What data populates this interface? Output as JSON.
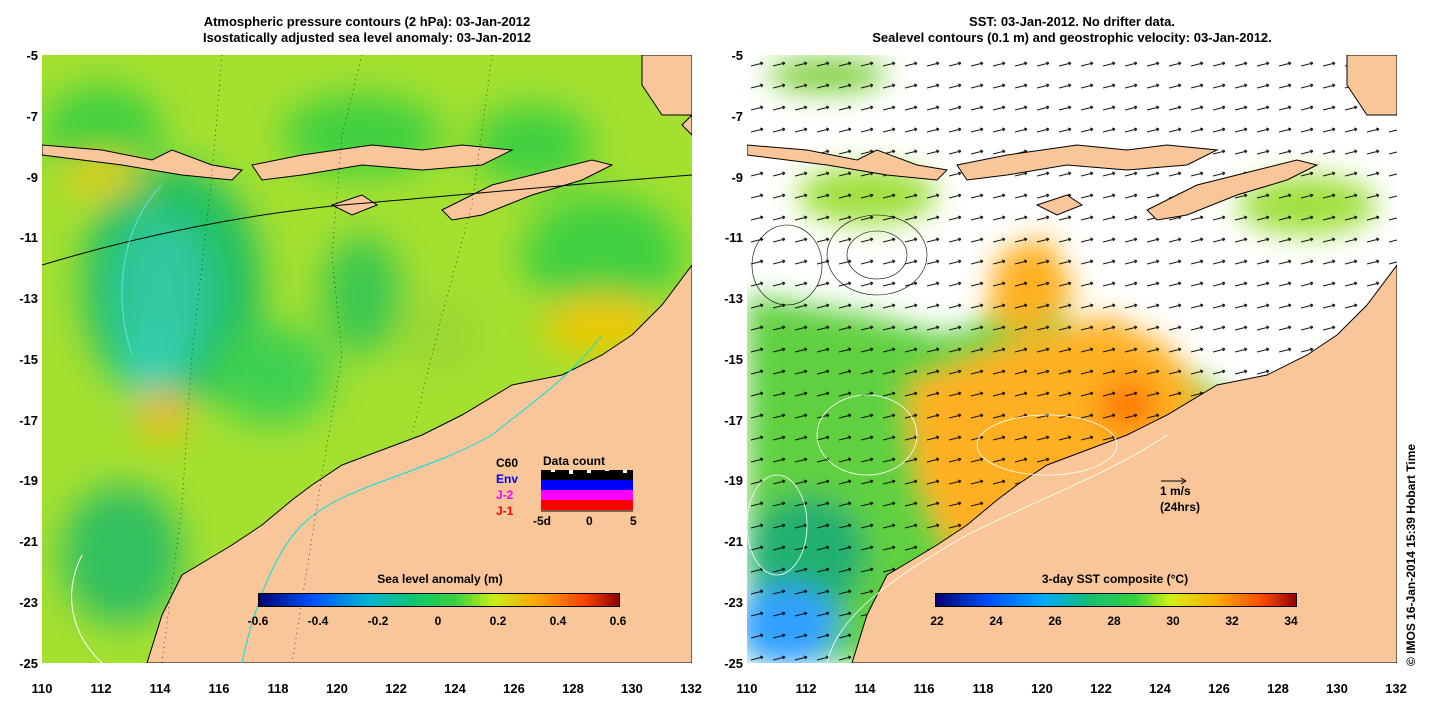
{
  "left_panel": {
    "title_line1": "Atmospheric pressure contours (2 hPa): 03-Jan-2012",
    "title_line2": "Isostatically adjusted sea level anomaly: 03-Jan-2012",
    "colorbar": {
      "title": "Sea level anomaly (m)",
      "ticks": [
        "-0.6",
        "-0.4",
        "-0.2",
        "0",
        "0.2",
        "0.4",
        "0.6"
      ]
    },
    "data_count": {
      "title": "Data count",
      "satellites": [
        "C60",
        "Env",
        "J-2",
        "J-1"
      ],
      "satellite_colors": [
        "#000000",
        "#0000ff",
        "#ff00ff",
        "#ff0000"
      ],
      "axis_ticks": [
        "-5d",
        "0",
        "5"
      ]
    }
  },
  "right_panel": {
    "title_line1": "SST: 03-Jan-2012. No drifter data.",
    "title_line2": "Sealevel contours (0.1 m) and geostrophic velocity: 03-Jan-2012.",
    "colorbar": {
      "title": "3-day SST composite (°C)",
      "ticks": [
        "22",
        "24",
        "26",
        "28",
        "30",
        "32",
        "34"
      ]
    },
    "velocity_scale": {
      "label": "1 m/s",
      "sublabel": "(24hrs)"
    }
  },
  "axes": {
    "y_ticks": [
      "-5",
      "-7",
      "-9",
      "-11",
      "-13",
      "-15",
      "-17",
      "-19",
      "-21",
      "-23",
      "-25"
    ],
    "x_ticks": [
      "110",
      "112",
      "114",
      "116",
      "118",
      "120",
      "122",
      "124",
      "126",
      "128",
      "130",
      "132"
    ]
  },
  "credit": "© IMOS 16-Jan-2014 15:39 Hobart Time",
  "colors": {
    "land": "#f9c69a",
    "sla_palette": [
      "#00006e",
      "#0050ff",
      "#00b4d2",
      "#14c864",
      "#3cd23c",
      "#c8f014",
      "#ffa000",
      "#ff4600",
      "#8c0000"
    ],
    "sst_palette": [
      "#00006e",
      "#0050ff",
      "#00aaff",
      "#14be78",
      "#32d23c",
      "#d2f014",
      "#ffaa00",
      "#ff5000",
      "#960000"
    ]
  }
}
